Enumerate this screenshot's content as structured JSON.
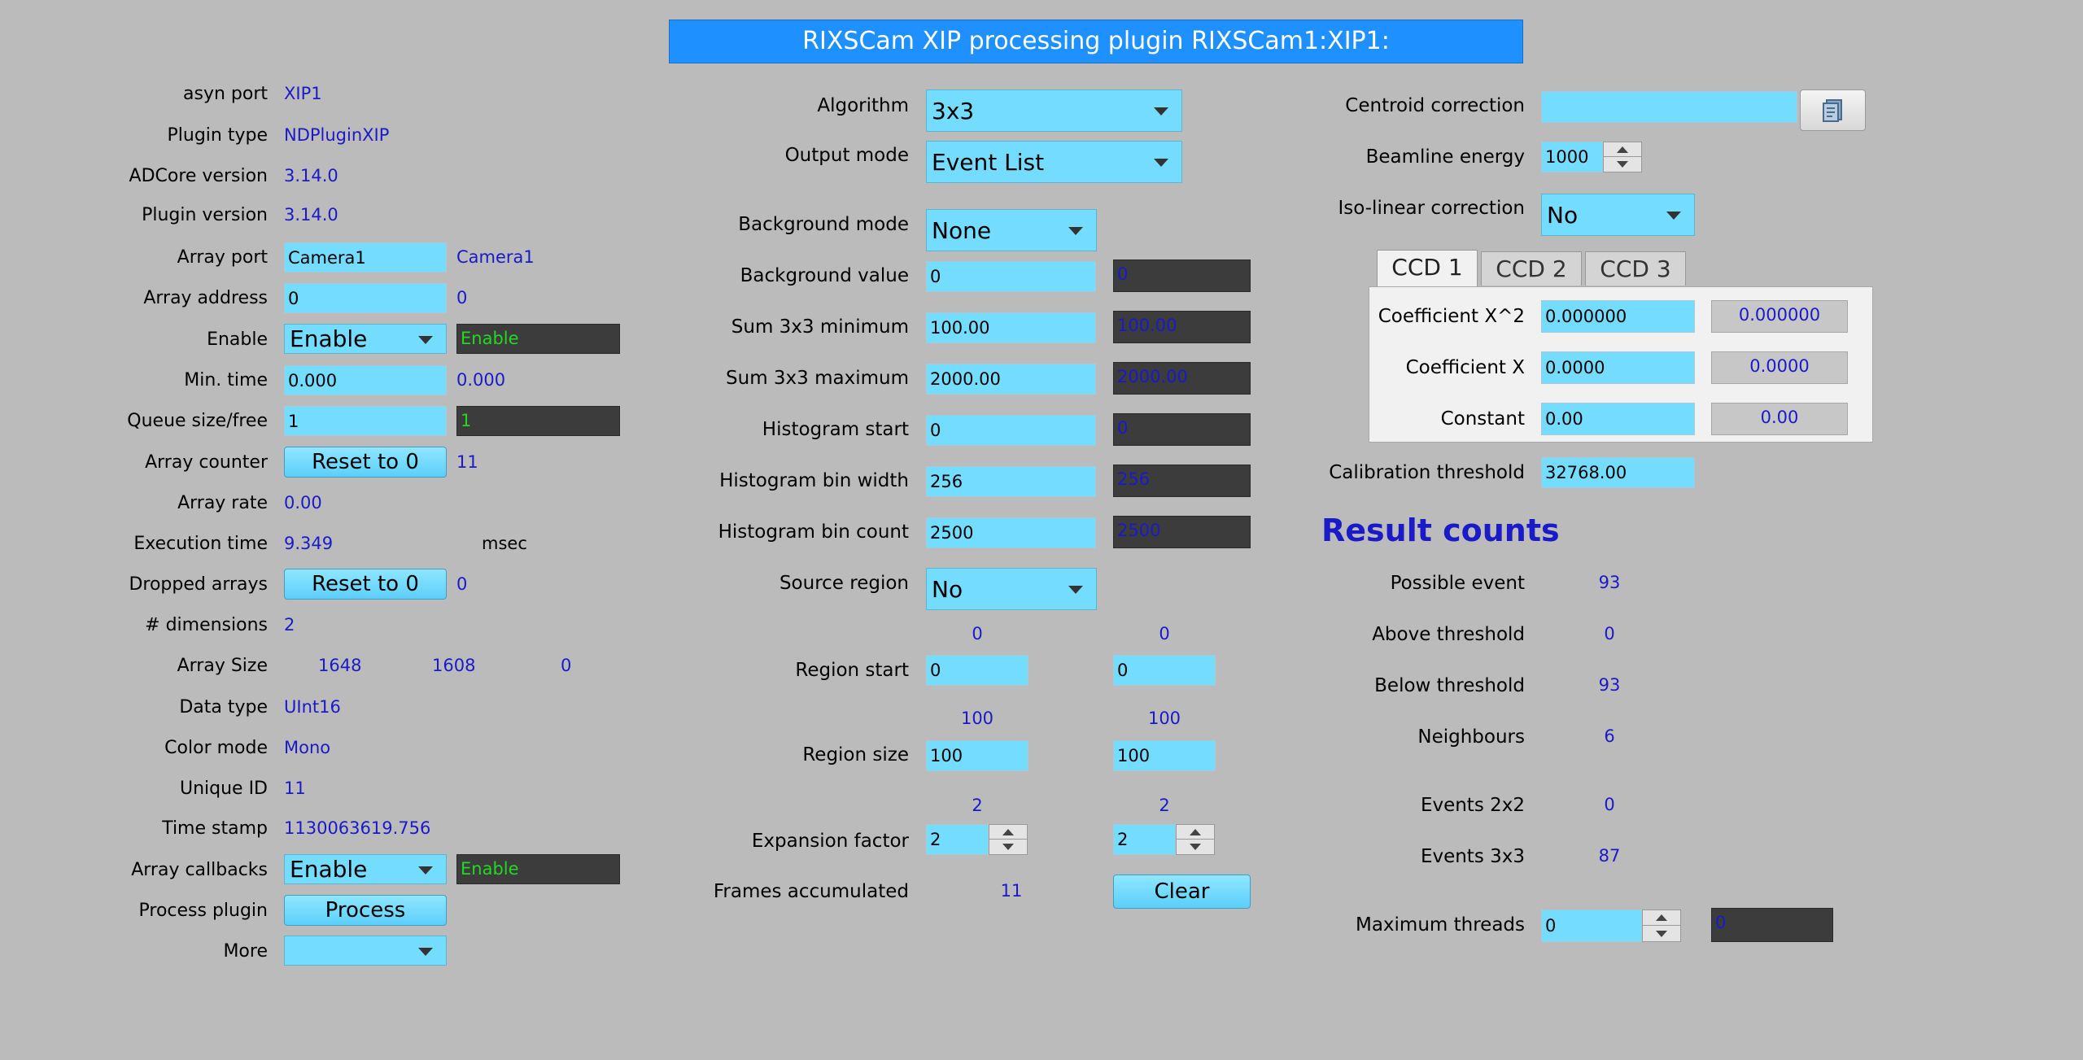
{
  "title": "RIXSCam XIP processing plugin RIXSCam1:XIP1:",
  "left": {
    "asyn_port": {
      "label": "asyn port",
      "value": "XIP1"
    },
    "plugin_type": {
      "label": "Plugin type",
      "value": "NDPluginXIP"
    },
    "adcore_version": {
      "label": "ADCore version",
      "value": "3.14.0"
    },
    "plugin_version": {
      "label": "Plugin version",
      "value": "3.14.0"
    },
    "array_port": {
      "label": "Array port",
      "input": "Camera1",
      "readback": "Camera1"
    },
    "array_address": {
      "label": "Array address",
      "input": "0",
      "readback": "0"
    },
    "enable": {
      "label": "Enable",
      "selected": "Enable",
      "readback": "Enable"
    },
    "min_time": {
      "label": "Min. time",
      "input": "0.000",
      "readback": "0.000"
    },
    "queue_size": {
      "label": "Queue size/free",
      "input": "1",
      "readback": "1"
    },
    "array_counter": {
      "label": "Array counter",
      "button": "Reset to 0",
      "value": "11"
    },
    "array_rate": {
      "label": "Array rate",
      "value": "0.00"
    },
    "execution_time": {
      "label": "Execution time",
      "value": "9.349",
      "unit": "msec"
    },
    "dropped_arrays": {
      "label": "Dropped arrays",
      "button": "Reset to 0",
      "value": "0"
    },
    "dimensions": {
      "label": "# dimensions",
      "value": "2"
    },
    "array_size": {
      "label": "Array Size",
      "values": [
        "1648",
        "1608",
        "0"
      ]
    },
    "data_type": {
      "label": "Data type",
      "value": "UInt16"
    },
    "color_mode": {
      "label": "Color mode",
      "value": "Mono"
    },
    "unique_id": {
      "label": "Unique ID",
      "value": "11"
    },
    "time_stamp": {
      "label": "Time stamp",
      "value": "1130063619.756"
    },
    "array_callbacks": {
      "label": "Array callbacks",
      "selected": "Enable",
      "readback": "Enable"
    },
    "process_plugin": {
      "label": "Process plugin",
      "button": "Process"
    },
    "more": {
      "label": "More",
      "selected": ""
    }
  },
  "middle": {
    "algorithm": {
      "label": "Algorithm",
      "selected": "3x3"
    },
    "output_mode": {
      "label": "Output mode",
      "selected": "Event List"
    },
    "background_mode": {
      "label": "Background mode",
      "selected": "None"
    },
    "background_value": {
      "label": "Background value",
      "input": "0",
      "readback": "0"
    },
    "sum_min": {
      "label": "Sum 3x3 minimum",
      "input": "100.00",
      "readback": "100.00"
    },
    "sum_max": {
      "label": "Sum 3x3 maximum",
      "input": "2000.00",
      "readback": "2000.00"
    },
    "hist_start": {
      "label": "Histogram start",
      "input": "0",
      "readback": "0"
    },
    "hist_bin_width": {
      "label": "Histogram bin width",
      "input": "256",
      "readback": "256"
    },
    "hist_bin_count": {
      "label": "Histogram bin count",
      "input": "2500",
      "readback": "2500"
    },
    "source_region": {
      "label": "Source region",
      "selected": "No"
    },
    "region_start": {
      "label": "Region start",
      "readback": [
        "0",
        "0"
      ],
      "input": [
        "0",
        "0"
      ]
    },
    "region_size": {
      "label": "Region size",
      "readback": [
        "100",
        "100"
      ],
      "input": [
        "100",
        "100"
      ]
    },
    "expansion_factor": {
      "label": "Expansion factor",
      "readback": [
        "2",
        "2"
      ],
      "input": [
        "2",
        "2"
      ]
    },
    "frames_accumulated": {
      "label": "Frames accumulated",
      "value": "11",
      "button": "Clear"
    }
  },
  "right": {
    "centroid_correction": {
      "label": "Centroid correction",
      "input": ""
    },
    "beamline_energy": {
      "label": "Beamline energy",
      "input": "1000"
    },
    "iso_linear": {
      "label": "Iso-linear correction",
      "selected": "No"
    },
    "tabs": [
      "CCD 1",
      "CCD 2",
      "CCD 3"
    ],
    "coef_x2": {
      "label": "Coefficient X^2",
      "input": "0.000000",
      "readback": "0.000000"
    },
    "coef_x": {
      "label": "Coefficient X",
      "input": "0.0000",
      "readback": "0.0000"
    },
    "constant": {
      "label": "Constant",
      "input": "0.00",
      "readback": "0.00"
    },
    "calibration_threshold": {
      "label": "Calibration threshold",
      "input": "32768.00"
    },
    "result_counts": "Result counts",
    "possible_event": {
      "label": "Possible event",
      "value": "93"
    },
    "above_threshold": {
      "label": "Above threshold",
      "value": "0"
    },
    "below_threshold": {
      "label": "Below threshold",
      "value": "93"
    },
    "neighbours": {
      "label": "Neighbours",
      "value": "6"
    },
    "events_2x2": {
      "label": "Events 2x2",
      "value": "0"
    },
    "events_3x3": {
      "label": "Events 3x3",
      "value": "87"
    },
    "max_threads": {
      "label": "Maximum threads",
      "input": "0",
      "readback": "0"
    }
  },
  "colors": {
    "title_bar": "#1e90ff",
    "input": "#73dcff",
    "readback_dark": "#3c3c3c",
    "value_text": "#1a1ac8",
    "enabled_text": "#22d822",
    "background": "#bbbbbb"
  }
}
